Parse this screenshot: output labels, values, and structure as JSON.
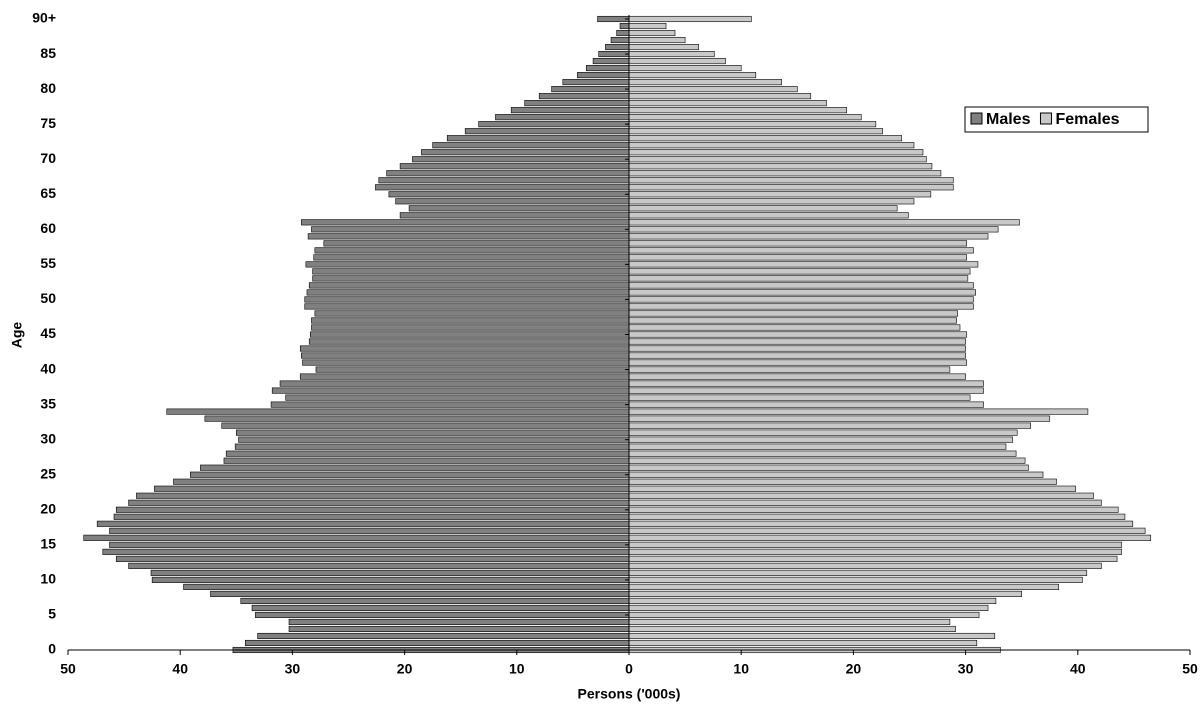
{
  "chart_data": {
    "type": "pyramid",
    "x_label": "Persons ('000s)",
    "y_label": "Age",
    "xlim": [
      0,
      50
    ],
    "xticks": [
      0,
      10,
      20,
      30,
      40,
      50
    ],
    "ylim": [
      0,
      90
    ],
    "yticks": [
      0,
      5,
      10,
      15,
      20,
      25,
      30,
      35,
      40,
      45,
      50,
      55,
      60,
      65,
      70,
      75,
      80,
      85,
      {
        "value": 90,
        "label": "90+"
      }
    ],
    "y": [
      0,
      1,
      2,
      3,
      4,
      5,
      6,
      7,
      8,
      9,
      10,
      11,
      12,
      13,
      14,
      15,
      16,
      17,
      18,
      19,
      20,
      21,
      22,
      23,
      24,
      25,
      26,
      27,
      28,
      29,
      30,
      31,
      32,
      33,
      34,
      35,
      36,
      37,
      38,
      39,
      40,
      41,
      42,
      43,
      44,
      45,
      46,
      47,
      48,
      49,
      50,
      51,
      52,
      53,
      54,
      55,
      56,
      57,
      58,
      59,
      60,
      61,
      62,
      63,
      64,
      65,
      66,
      67,
      68,
      69,
      70,
      71,
      72,
      73,
      74,
      75,
      76,
      77,
      78,
      79,
      80,
      81,
      82,
      83,
      84,
      85,
      86,
      87,
      88,
      89,
      90
    ],
    "legend": "upper right",
    "series": [
      {
        "name": "Males",
        "color": "#808080",
        "side": "left",
        "values": [
          35.3,
          34.2,
          33.1,
          30.3,
          30.3,
          33.3,
          33.6,
          34.6,
          37.3,
          39.7,
          42.5,
          42.6,
          44.6,
          45.7,
          46.9,
          46.3,
          48.6,
          46.3,
          47.4,
          45.9,
          45.7,
          44.6,
          43.9,
          42.3,
          40.6,
          39.1,
          38.2,
          36.1,
          35.9,
          35.1,
          34.8,
          35.0,
          36.3,
          37.8,
          41.2,
          31.9,
          30.6,
          31.8,
          31.1,
          29.3,
          27.9,
          29.1,
          29.2,
          29.3,
          28.5,
          28.4,
          28.3,
          28.3,
          28.0,
          28.9,
          28.9,
          28.7,
          28.5,
          28.2,
          28.2,
          28.8,
          28.1,
          28.0,
          27.2,
          28.6,
          28.3,
          29.2,
          20.4,
          19.6,
          20.8,
          21.4,
          22.6,
          22.3,
          21.6,
          20.4,
          19.3,
          18.5,
          17.5,
          16.2,
          14.6,
          13.4,
          11.9,
          10.5,
          9.3,
          8.0,
          6.9,
          5.9,
          4.6,
          3.8,
          3.2,
          2.7,
          2.1,
          1.6,
          1.1,
          0.8,
          2.8
        ]
      },
      {
        "name": "Females",
        "color": "#c8c8c8",
        "side": "right",
        "values": [
          33.1,
          31.0,
          32.6,
          29.1,
          28.6,
          31.2,
          32.0,
          32.7,
          35.0,
          38.3,
          40.4,
          40.8,
          42.1,
          43.5,
          43.9,
          43.9,
          46.5,
          46.0,
          44.9,
          44.2,
          43.6,
          42.1,
          41.4,
          39.8,
          38.1,
          36.9,
          35.6,
          35.3,
          34.5,
          33.6,
          34.2,
          34.6,
          35.8,
          37.5,
          40.9,
          31.6,
          30.4,
          31.6,
          31.6,
          30.0,
          28.6,
          30.1,
          30.0,
          30.0,
          30.0,
          30.1,
          29.5,
          29.2,
          29.3,
          30.7,
          30.7,
          30.9,
          30.7,
          30.2,
          30.4,
          31.1,
          30.1,
          30.7,
          30.1,
          32.0,
          32.9,
          34.8,
          24.9,
          23.9,
          25.4,
          26.9,
          28.9,
          28.9,
          27.8,
          27.0,
          26.5,
          26.2,
          25.4,
          24.3,
          22.6,
          22.0,
          20.7,
          19.4,
          17.6,
          16.2,
          15.0,
          13.6,
          11.3,
          10.0,
          8.6,
          7.6,
          6.2,
          5.0,
          4.1,
          3.3,
          10.9
        ]
      }
    ]
  }
}
